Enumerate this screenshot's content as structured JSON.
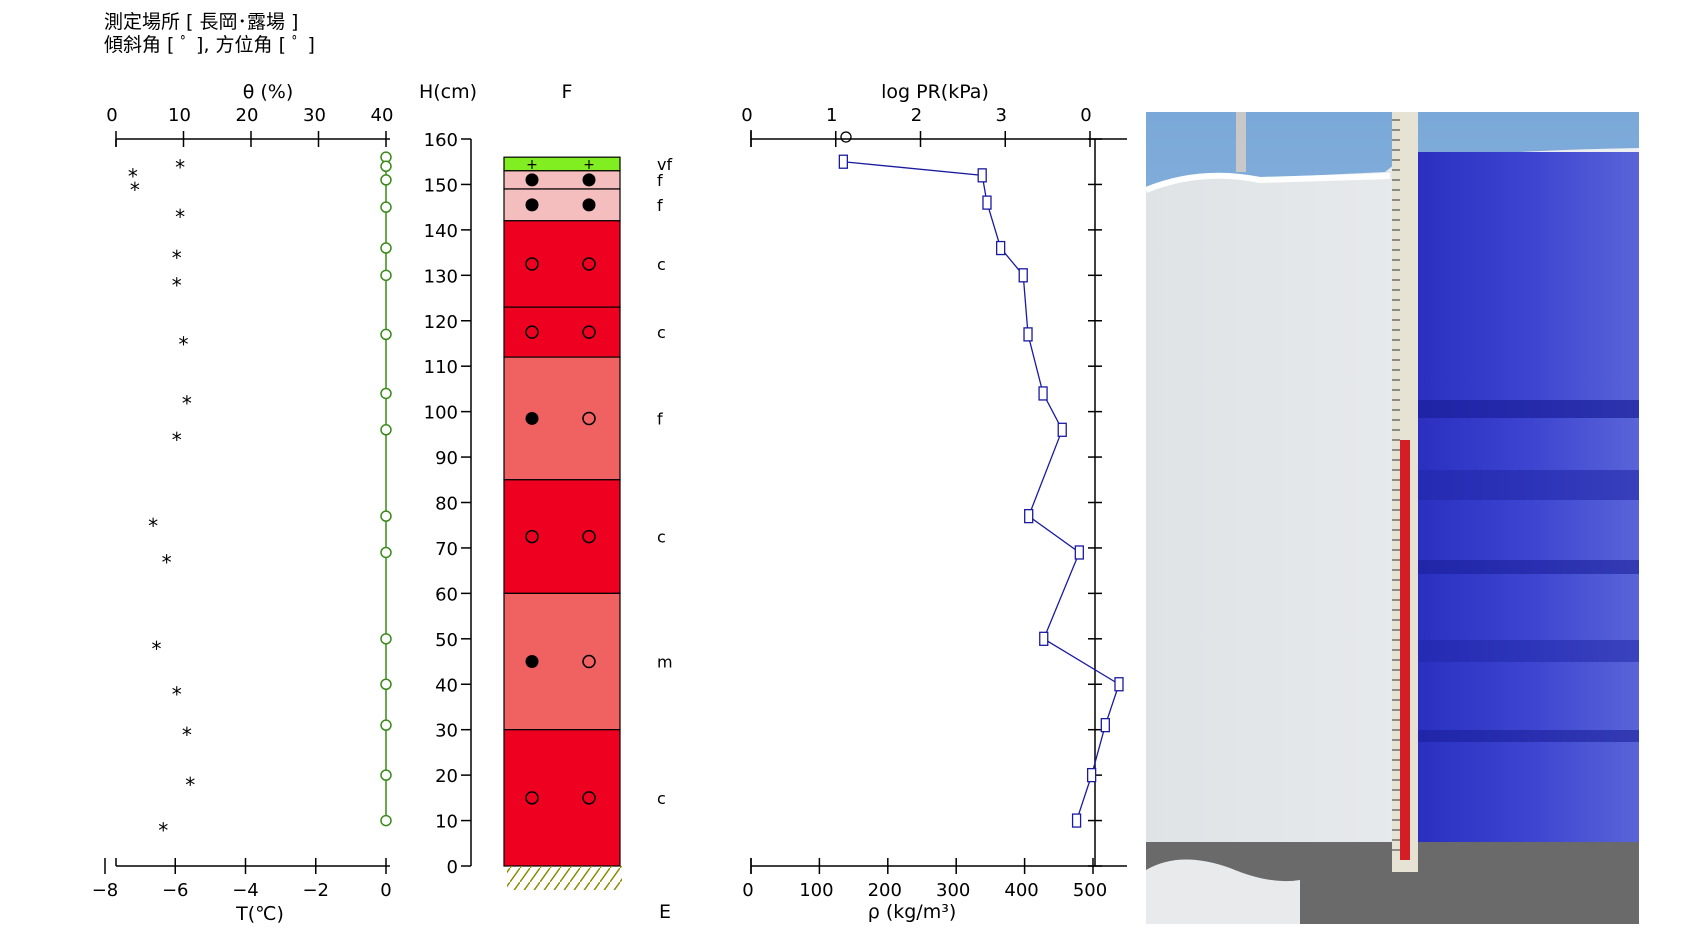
{
  "header": {
    "site_line": "測定場所 [ 長岡･露場 ]",
    "angle_line": "傾斜角 [ ﾟ ], 方位角 [ ﾟ ]"
  },
  "chart_data": [
    {
      "name": "moisture-temperature",
      "type": "scatter",
      "top_axis": {
        "label": "θ (%)",
        "ticks": [
          "0",
          "10",
          "20",
          "30",
          "40"
        ],
        "range": [
          0,
          40
        ]
      },
      "bottom_axis": {
        "label": "T(℃)",
        "ticks": [
          "−8",
          "−6",
          "−4",
          "−2",
          "0"
        ],
        "range": [
          -8,
          0
        ]
      },
      "moisture_points": [
        {
          "h": 154,
          "theta": 9.5
        },
        {
          "h": 152,
          "theta": 2.5
        },
        {
          "h": 149,
          "theta": 2.8
        },
        {
          "h": 143,
          "theta": 9.5
        },
        {
          "h": 134,
          "theta": 9.0
        },
        {
          "h": 128,
          "theta": 9.0
        },
        {
          "h": 115,
          "theta": 10.0
        },
        {
          "h": 102,
          "theta": 10.5
        },
        {
          "h": 94,
          "theta": 9.0
        },
        {
          "h": 75,
          "theta": 5.5
        },
        {
          "h": 67,
          "theta": 7.5
        },
        {
          "h": 48,
          "theta": 6.0
        },
        {
          "h": 38,
          "theta": 9.0
        },
        {
          "h": 29,
          "theta": 10.5
        },
        {
          "h": 18,
          "theta": 11.0
        },
        {
          "h": 8,
          "theta": 7.0
        }
      ],
      "temperature_points": [
        {
          "h": 156,
          "t": 0
        },
        {
          "h": 154,
          "t": 0
        },
        {
          "h": 151,
          "t": 0
        },
        {
          "h": 145,
          "t": 0
        },
        {
          "h": 136,
          "t": 0
        },
        {
          "h": 130,
          "t": 0
        },
        {
          "h": 117,
          "t": 0
        },
        {
          "h": 104,
          "t": 0
        },
        {
          "h": 96,
          "t": 0
        },
        {
          "h": 77,
          "t": 0
        },
        {
          "h": 69,
          "t": 0
        },
        {
          "h": 50,
          "t": 0
        },
        {
          "h": 40,
          "t": 0
        },
        {
          "h": 31,
          "t": 0
        },
        {
          "h": 20,
          "t": 0
        },
        {
          "h": 10,
          "t": 0
        }
      ],
      "colors": {
        "temperature": "#3a8a1a",
        "moisture": "#000000"
      }
    },
    {
      "name": "snow-stratigraphy",
      "type": "table",
      "height_axis": {
        "label": "H(cm)",
        "ticks": [
          "0",
          "10",
          "20",
          "30",
          "40",
          "50",
          "60",
          "70",
          "80",
          "90",
          "100",
          "110",
          "120",
          "130",
          "140",
          "150",
          "160"
        ],
        "range": [
          0,
          160
        ]
      },
      "column_label": "F",
      "ground_label": "E",
      "layers": [
        {
          "top": 156,
          "bottom": 153,
          "color": "#80ee20",
          "grain1": "plus",
          "grain2": "plus",
          "grain_size": "vf"
        },
        {
          "top": 153,
          "bottom": 149,
          "color": "#f5bebe",
          "grain1": "filled",
          "grain2": "filled",
          "grain_size": "f"
        },
        {
          "top": 149,
          "bottom": 142,
          "color": "#f5bebe",
          "grain1": "filled",
          "grain2": "filled",
          "grain_size": "f"
        },
        {
          "top": 142,
          "bottom": 123,
          "color": "#ee0020",
          "grain1": "open",
          "grain2": "open",
          "grain_size": "c"
        },
        {
          "top": 123,
          "bottom": 112,
          "color": "#ee0020",
          "grain1": "open",
          "grain2": "open",
          "grain_size": "c"
        },
        {
          "top": 112,
          "bottom": 85,
          "color": "#f06262",
          "grain1": "filled",
          "grain2": "open",
          "grain_size": "f"
        },
        {
          "top": 85,
          "bottom": 60,
          "color": "#ee0020",
          "grain1": "open",
          "grain2": "open",
          "grain_size": "c"
        },
        {
          "top": 60,
          "bottom": 30,
          "color": "#f06262",
          "grain1": "filled",
          "grain2": "open",
          "grain_size": "m"
        },
        {
          "top": 30,
          "bottom": 0,
          "color": "#ee0020",
          "grain1": "open",
          "grain2": "open",
          "grain_size": "c"
        }
      ]
    },
    {
      "name": "density-hardness",
      "type": "line",
      "top_axis": {
        "label": "log PR(kPa)",
        "ticks": [
          "0",
          "1",
          "2",
          "3",
          "0"
        ],
        "range": [
          0,
          4
        ]
      },
      "bottom_axis": {
        "label": "ρ (kg/m³)",
        "ticks": [
          "0",
          "100",
          "200",
          "300",
          "400",
          "500"
        ],
        "range": [
          0,
          500
        ]
      },
      "hardness_points": [
        {
          "h": 160,
          "logpr": 1.05
        }
      ],
      "density_series": {
        "color": "#1a1aa0",
        "points": [
          {
            "h": 155,
            "rho": 135
          },
          {
            "h": 152,
            "rho": 338
          },
          {
            "h": 146,
            "rho": 345
          },
          {
            "h": 136,
            "rho": 365
          },
          {
            "h": 130,
            "rho": 398
          },
          {
            "h": 117,
            "rho": 405
          },
          {
            "h": 104,
            "rho": 427
          },
          {
            "h": 96,
            "rho": 455
          },
          {
            "h": 77,
            "rho": 406
          },
          {
            "h": 69,
            "rho": 480
          },
          {
            "h": 50,
            "rho": 428
          },
          {
            "h": 40,
            "rho": 538
          },
          {
            "h": 31,
            "rho": 518
          },
          {
            "h": 20,
            "rho": 498
          },
          {
            "h": 10,
            "rho": 476
          }
        ]
      }
    }
  ]
}
